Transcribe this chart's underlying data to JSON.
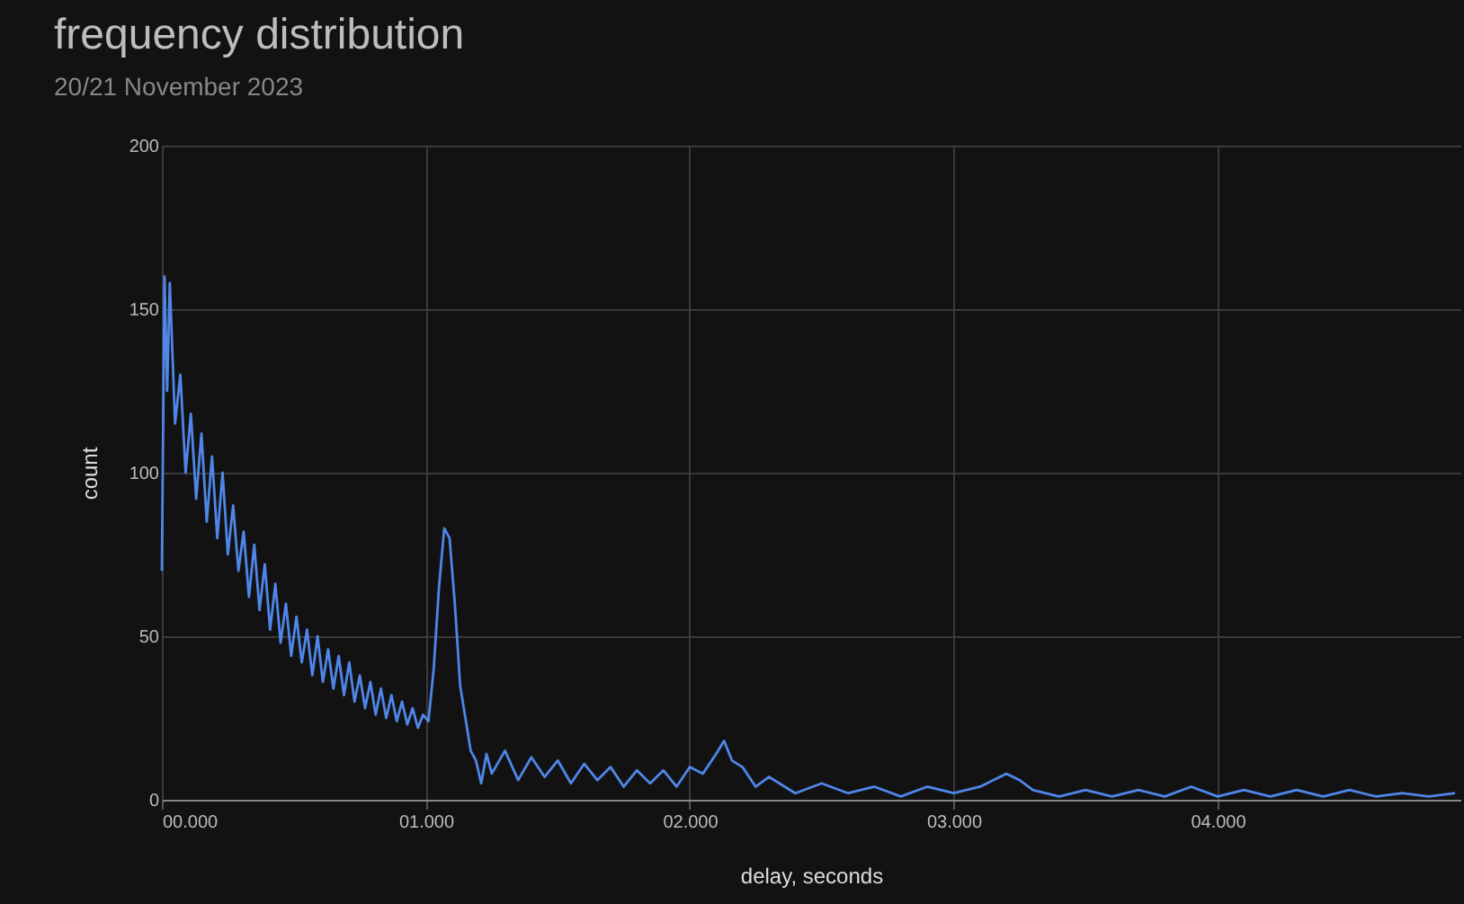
{
  "chart_data": {
    "type": "line",
    "title": "frequency distribution",
    "subtitle": "20/21 November 2023",
    "xlabel": "delay, seconds",
    "ylabel": "count",
    "x": [
      0,
      0.01,
      0.02,
      0.03,
      0.05,
      0.07,
      0.09,
      0.11,
      0.13,
      0.15,
      0.17,
      0.19,
      0.21,
      0.23,
      0.25,
      0.27,
      0.29,
      0.31,
      0.33,
      0.35,
      0.37,
      0.39,
      0.41,
      0.43,
      0.45,
      0.47,
      0.49,
      0.51,
      0.53,
      0.55,
      0.57,
      0.59,
      0.61,
      0.63,
      0.65,
      0.67,
      0.69,
      0.71,
      0.73,
      0.75,
      0.77,
      0.79,
      0.81,
      0.83,
      0.85,
      0.87,
      0.89,
      0.91,
      0.93,
      0.95,
      0.97,
      0.99,
      1.01,
      1.03,
      1.05,
      1.07,
      1.09,
      1.11,
      1.13,
      1.15,
      1.17,
      1.19,
      1.21,
      1.23,
      1.25,
      1.3,
      1.35,
      1.4,
      1.45,
      1.5,
      1.55,
      1.6,
      1.65,
      1.7,
      1.75,
      1.8,
      1.85,
      1.9,
      1.95,
      2.0,
      2.05,
      2.1,
      2.13,
      2.16,
      2.2,
      2.25,
      2.3,
      2.4,
      2.5,
      2.6,
      2.7,
      2.8,
      2.9,
      3.0,
      3.1,
      3.2,
      3.25,
      3.3,
      3.4,
      3.5,
      3.6,
      3.7,
      3.8,
      3.9,
      4.0,
      4.1,
      4.2,
      4.3,
      4.4,
      4.5,
      4.6,
      4.7,
      4.8,
      4.9
    ],
    "series": [
      {
        "color": "#4f86e8",
        "values": [
          70,
          160,
          125,
          158,
          115,
          130,
          100,
          118,
          92,
          112,
          85,
          105,
          80,
          100,
          75,
          90,
          70,
          82,
          62,
          78,
          58,
          72,
          52,
          66,
          48,
          60,
          44,
          56,
          42,
          52,
          38,
          50,
          36,
          46,
          34,
          44,
          32,
          42,
          30,
          38,
          28,
          36,
          26,
          34,
          25,
          32,
          24,
          30,
          23,
          28,
          22,
          26,
          24,
          40,
          65,
          83,
          80,
          60,
          35,
          25,
          15,
          12,
          5,
          14,
          8,
          15,
          6,
          13,
          7,
          12,
          5,
          11,
          6,
          10,
          4,
          9,
          5,
          9,
          4,
          10,
          8,
          14,
          18,
          12,
          10,
          4,
          7,
          2,
          5,
          2,
          4,
          1,
          4,
          2,
          4,
          8,
          6,
          3,
          1,
          3,
          1,
          3,
          1,
          4,
          1,
          3,
          1,
          3,
          1,
          3,
          1,
          2,
          1,
          2
        ]
      }
    ],
    "xlim": [
      0,
      4.92
    ],
    "ylim": [
      0,
      200
    ],
    "xticks": [
      {
        "value": 0,
        "label": "00.000"
      },
      {
        "value": 1,
        "label": "01.000"
      },
      {
        "value": 2,
        "label": "02.000"
      },
      {
        "value": 3,
        "label": "03.000"
      },
      {
        "value": 4,
        "label": "04.000"
      }
    ],
    "yticks": [
      0,
      50,
      100,
      150,
      200
    ],
    "grid": true,
    "marker": "none",
    "line_style": "solid"
  }
}
